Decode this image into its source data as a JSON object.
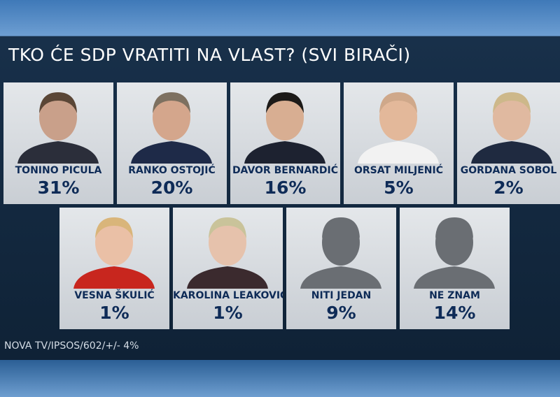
{
  "title": "TKO ĆE SDP VRATITI NA VLAST? (SVI BIRAČI)",
  "cards": [
    {
      "name": "TONINO PICULA",
      "value": "31%"
    },
    {
      "name": "RANKO OSTOJIĆ",
      "value": "20%"
    },
    {
      "name": "DAVOR BERNARDIĆ",
      "value": "16%"
    },
    {
      "name": "ORSAT MILJENIĆ",
      "value": "5%"
    },
    {
      "name": "GORDANA SOBOL",
      "value": "2%"
    },
    {
      "name": "VESNA ŠKULIĆ",
      "value": "1%"
    },
    {
      "name": "KAROLINA LEAKOVIĆ",
      "value": "1%"
    },
    {
      "name": "NITI JEDAN",
      "value": "9%"
    },
    {
      "name": "NE ZNAM",
      "value": "14%"
    }
  ],
  "source": "NOVA TV/IPSOS/602/+/- 4%"
}
